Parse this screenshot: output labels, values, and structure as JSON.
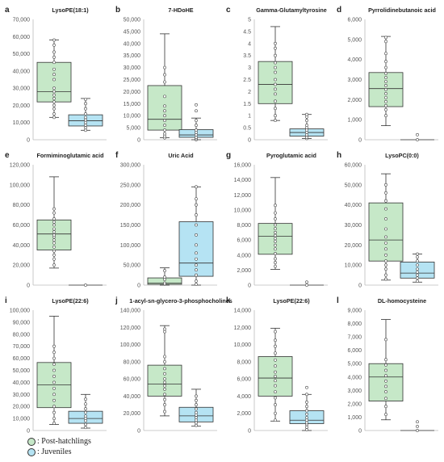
{
  "colors": {
    "post_hatchlings": "#c6e8c8",
    "juveniles": "#b5e3f3",
    "box_edge": "#333333",
    "axis": "#bbbbbb"
  },
  "legend": [
    {
      "label": ": Post-hatchlings",
      "color": "#c6e8c8"
    },
    {
      "label": ": Juveniles",
      "color": "#b5e3f3"
    }
  ],
  "chart_data": [
    {
      "type": "box",
      "letter": "a",
      "title": "LysoPE(18:1)",
      "ylim": [
        0,
        70000
      ],
      "yticks": [
        0,
        10000,
        20000,
        30000,
        40000,
        50000,
        60000,
        70000
      ],
      "tick_labels": [
        "0",
        "10,000",
        "20,000",
        "30,000",
        "40,000",
        "50,000",
        "60,000",
        "70,000"
      ],
      "series": [
        {
          "name": "Post-hatchlings",
          "min": 13000,
          "q1": 22000,
          "median": 28000,
          "q3": 45000,
          "max": 58000,
          "points": [
            13000,
            15000,
            18000,
            20000,
            22000,
            24000,
            26000,
            28000,
            30000,
            35000,
            38000,
            41000,
            45000,
            48000,
            51000,
            55000,
            58000
          ]
        },
        {
          "name": "Juveniles",
          "min": 5500,
          "q1": 8000,
          "median": 11000,
          "q3": 14500,
          "max": 24000,
          "points": [
            5500,
            7000,
            8500,
            10000,
            11500,
            13000,
            15000,
            18000,
            21000,
            23500
          ]
        }
      ]
    },
    {
      "type": "box",
      "letter": "b",
      "title": "7-HDoHE",
      "ylim": [
        0,
        50000
      ],
      "yticks": [
        0,
        5000,
        10000,
        15000,
        20000,
        25000,
        30000,
        35000,
        40000,
        45000,
        50000
      ],
      "tick_labels": [
        "0",
        "5,000",
        "10,000",
        "15,000",
        "20,000",
        "25,000",
        "30,000",
        "35,000",
        "40,000",
        "45,000",
        "50,000"
      ],
      "series": [
        {
          "name": "Post-hatchlings",
          "min": 800,
          "q1": 4000,
          "median": 8500,
          "q3": 22500,
          "max": 44000,
          "points": [
            800,
            1500,
            2500,
            4000,
            6000,
            8000,
            10000,
            12000,
            14000,
            18000,
            24000,
            27000,
            30000
          ]
        },
        {
          "name": "Juveniles",
          "min": 0,
          "q1": 1000,
          "median": 2000,
          "q3": 4200,
          "max": 9000,
          "points": [
            0,
            500,
            1000,
            2000,
            3000,
            4000,
            6000,
            8000,
            12000,
            14500
          ]
        }
      ]
    },
    {
      "type": "box",
      "letter": "c",
      "title": "Gamma-Glutamyltyrosine",
      "ylim": [
        0,
        5
      ],
      "yticks": [
        0,
        0.5,
        1,
        1.5,
        2,
        2.5,
        3,
        3.5,
        4,
        4.5,
        5
      ],
      "tick_labels": [
        "0",
        "0.5",
        "1",
        "1.5",
        "2",
        "2.5",
        "3",
        "3.5",
        "4",
        "4.5",
        "5"
      ],
      "series": [
        {
          "name": "Post-hatchlings",
          "min": 0.8,
          "q1": 1.5,
          "median": 2.3,
          "q3": 3.25,
          "max": 4.7,
          "points": [
            0.8,
            1.0,
            1.3,
            1.6,
            1.9,
            2.1,
            2.3,
            2.5,
            2.8,
            3.0,
            3.2,
            3.5,
            3.8,
            4.0
          ]
        },
        {
          "name": "Juveniles",
          "min": 0.05,
          "q1": 0.15,
          "median": 0.3,
          "q3": 0.45,
          "max": 1.05,
          "points": [
            0.05,
            0.1,
            0.2,
            0.3,
            0.4,
            0.5,
            0.6,
            0.8,
            0.95,
            1.05
          ]
        }
      ]
    },
    {
      "type": "box",
      "letter": "d",
      "title": "Pyrrolidinebutanoic acid",
      "ylim": [
        0,
        6000
      ],
      "yticks": [
        0,
        1000,
        2000,
        3000,
        4000,
        5000,
        6000
      ],
      "tick_labels": [
        "0",
        "1,000",
        "2,000",
        "3,000",
        "4,000",
        "5,000",
        "6,000"
      ],
      "series": [
        {
          "name": "Post-hatchlings",
          "min": 700,
          "q1": 1650,
          "median": 2550,
          "q3": 3350,
          "max": 5150,
          "points": [
            1200,
            1500,
            1700,
            1900,
            2100,
            2300,
            2500,
            2700,
            2900,
            3100,
            3300,
            3600,
            3900,
            4300,
            4900,
            5100
          ]
        },
        {
          "name": "Juveniles",
          "min": 0,
          "q1": 0,
          "median": 0,
          "q3": 0,
          "max": 0,
          "points": [
            0,
            250
          ]
        }
      ]
    },
    {
      "type": "box",
      "letter": "e",
      "title": "Formiminoglutamic acid",
      "ylim": [
        0,
        120000
      ],
      "yticks": [
        0,
        20000,
        40000,
        60000,
        80000,
        100000,
        120000
      ],
      "tick_labels": [
        "0",
        "20,000",
        "40,000",
        "60,000",
        "80,000",
        "100,000",
        "120,000"
      ],
      "series": [
        {
          "name": "Post-hatchlings",
          "min": 17000,
          "q1": 35000,
          "median": 51000,
          "q3": 65000,
          "max": 108000,
          "points": [
            20000,
            26000,
            30000,
            34000,
            38000,
            42000,
            45000,
            48000,
            50000,
            53000,
            56000,
            60000,
            63000,
            66000,
            72000,
            76000
          ]
        },
        {
          "name": "Juveniles",
          "min": 0,
          "q1": 0,
          "median": 0,
          "q3": 0,
          "max": 0,
          "points": [
            0
          ]
        }
      ]
    },
    {
      "type": "box",
      "letter": "f",
      "title": "Uric Acid",
      "ylim": [
        0,
        300000
      ],
      "yticks": [
        0,
        50000,
        100000,
        150000,
        200000,
        250000,
        300000
      ],
      "tick_labels": [
        "0",
        "50,000",
        "100,000",
        "150,000",
        "200,000",
        "250,000",
        "300,000"
      ],
      "series": [
        {
          "name": "Post-hatchlings",
          "min": 0,
          "q1": 2000,
          "median": 5000,
          "q3": 18000,
          "max": 43000,
          "points": [
            2000,
            5000,
            14000,
            20000,
            36000
          ]
        },
        {
          "name": "Juveniles",
          "min": 0,
          "q1": 22000,
          "median": 55000,
          "q3": 158000,
          "max": 245000,
          "points": [
            2000,
            10000,
            25000,
            38000,
            50000,
            65000,
            80000,
            100000,
            125000,
            150000,
            175000,
            200000,
            215000,
            245000
          ]
        }
      ]
    },
    {
      "type": "box",
      "letter": "g",
      "title": "Pyroglutamic acid",
      "ylim": [
        0,
        16000
      ],
      "yticks": [
        0,
        2000,
        4000,
        6000,
        8000,
        10000,
        12000,
        14000,
        16000
      ],
      "tick_labels": [
        "0",
        "2,000",
        "4,000",
        "6,000",
        "8,000",
        "10,000",
        "12,000",
        "14,000",
        "16,000"
      ],
      "series": [
        {
          "name": "Post-hatchlings",
          "min": 2100,
          "q1": 4100,
          "median": 6500,
          "q3": 8200,
          "max": 14300,
          "points": [
            2500,
            3000,
            3500,
            4200,
            4800,
            5300,
            5800,
            6200,
            6600,
            7000,
            7500,
            8000,
            8800,
            9600,
            10600
          ]
        },
        {
          "name": "Juveniles",
          "min": 0,
          "q1": 0,
          "median": 0,
          "q3": 0,
          "max": 0,
          "points": [
            0,
            400
          ]
        }
      ]
    },
    {
      "type": "box",
      "letter": "h",
      "title": "LysoPC(0:0)",
      "ylim": [
        0,
        60000
      ],
      "yticks": [
        0,
        10000,
        20000,
        30000,
        40000,
        50000,
        60000
      ],
      "tick_labels": [
        "0",
        "10,000",
        "20,000",
        "30,000",
        "40,000",
        "50,000",
        "60,000"
      ],
      "series": [
        {
          "name": "Post-hatchlings",
          "min": 2500,
          "q1": 12000,
          "median": 22500,
          "q3": 41000,
          "max": 55500,
          "points": [
            3000,
            5000,
            8000,
            10000,
            12000,
            15000,
            18000,
            21000,
            24000,
            28000,
            33000,
            38000,
            42000,
            46000,
            50000
          ]
        },
        {
          "name": "Juveniles",
          "min": 1500,
          "q1": 3500,
          "median": 6000,
          "q3": 11500,
          "max": 15500,
          "points": [
            2000,
            3500,
            5000,
            6500,
            8000,
            10000,
            12000,
            14000,
            15500
          ]
        }
      ]
    },
    {
      "type": "box",
      "letter": "i",
      "title": "LysoPE(22:6)",
      "ylim": [
        0,
        100000
      ],
      "yticks": [
        0,
        10000,
        20000,
        30000,
        40000,
        50000,
        60000,
        70000,
        80000,
        90000,
        100000
      ],
      "tick_labels": [
        "0",
        "10,000",
        "20,000",
        "30,000",
        "40,000",
        "50,000",
        "60,000",
        "70,000",
        "80,000",
        "90,000",
        "100,000"
      ],
      "series": [
        {
          "name": "Post-hatchlings",
          "min": 5000,
          "q1": 19000,
          "median": 38000,
          "q3": 56500,
          "max": 95000,
          "points": [
            6000,
            10000,
            15000,
            20000,
            25000,
            30000,
            35000,
            40000,
            45000,
            50000,
            55000,
            60000,
            65000,
            70000
          ]
        },
        {
          "name": "Juveniles",
          "min": 2000,
          "q1": 6000,
          "median": 10000,
          "q3": 16000,
          "max": 30000,
          "points": [
            2500,
            5000,
            8000,
            10000,
            12000,
            15000,
            18000,
            22000,
            26000
          ]
        }
      ]
    },
    {
      "type": "box",
      "letter": "j",
      "title": "1-acyl-sn-glycero-3-phosphocholines",
      "ylim": [
        0,
        140000
      ],
      "yticks": [
        0,
        20000,
        40000,
        60000,
        80000,
        100000,
        120000,
        140000
      ],
      "tick_labels": [
        "0",
        "20,000",
        "40,000",
        "60,000",
        "80,000",
        "100,000",
        "120,000",
        "140,000"
      ],
      "series": [
        {
          "name": "Post-hatchlings",
          "min": 17000,
          "q1": 40000,
          "median": 54000,
          "q3": 76000,
          "max": 122000,
          "points": [
            22000,
            30000,
            36000,
            42000,
            48000,
            52000,
            56000,
            60000,
            66000,
            72000,
            80000,
            86000,
            115000,
            118000
          ]
        },
        {
          "name": "Juveniles",
          "min": 5000,
          "q1": 10000,
          "median": 17000,
          "q3": 27000,
          "max": 48000,
          "points": [
            6000,
            9000,
            12000,
            15000,
            18000,
            21000,
            25000,
            30000,
            35000,
            40000
          ]
        }
      ]
    },
    {
      "type": "box",
      "letter": "k",
      "title": "LysoPE(22:6)",
      "ylim": [
        0,
        14000
      ],
      "yticks": [
        0,
        2000,
        4000,
        6000,
        8000,
        10000,
        12000,
        14000
      ],
      "tick_labels": [
        "0",
        "2,000",
        "4,000",
        "6,000",
        "8,000",
        "10,000",
        "12,000",
        "14,000"
      ],
      "series": [
        {
          "name": "Post-hatchlings",
          "min": 1100,
          "q1": 4000,
          "median": 6100,
          "q3": 8600,
          "max": 11900,
          "points": [
            1200,
            2000,
            3000,
            3800,
            4500,
            5200,
            5800,
            6300,
            6800,
            7500,
            8200,
            9000,
            9800,
            10500,
            11500
          ]
        },
        {
          "name": "Juveniles",
          "min": 0,
          "q1": 800,
          "median": 1200,
          "q3": 2300,
          "max": 4200,
          "points": [
            100,
            400,
            700,
            900,
            1200,
            1500,
            1900,
            2300,
            2800,
            3300,
            4200,
            5000
          ]
        }
      ]
    },
    {
      "type": "box",
      "letter": "l",
      "title": "DL-homocysteine",
      "ylim": [
        0,
        9000
      ],
      "yticks": [
        0,
        1000,
        2000,
        3000,
        4000,
        5000,
        6000,
        7000,
        8000,
        9000
      ],
      "tick_labels": [
        "0",
        "1,000",
        "2,000",
        "3,000",
        "4,000",
        "5,000",
        "6,000",
        "7,000",
        "8,000",
        "9,000"
      ],
      "series": [
        {
          "name": "Post-hatchlings",
          "min": 800,
          "q1": 2200,
          "median": 4000,
          "q3": 5000,
          "max": 8300,
          "points": [
            1200,
            1800,
            2400,
            2900,
            3300,
            3700,
            4100,
            4500,
            4900,
            5300,
            6800
          ]
        },
        {
          "name": "Juveniles",
          "min": 0,
          "q1": 0,
          "median": 0,
          "q3": 0,
          "max": 0,
          "points": [
            0,
            300,
            650
          ]
        }
      ]
    }
  ]
}
